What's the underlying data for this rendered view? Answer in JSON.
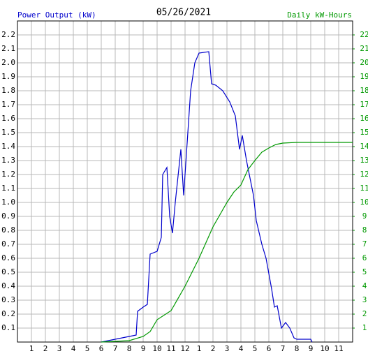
{
  "chart_data": {
    "type": "line",
    "title": "05/26/2021",
    "y_label": "Power Output (kW)",
    "y2_label": "Daily kW-Hours",
    "xlim": [
      0,
      24
    ],
    "xticks": [
      1,
      2,
      3,
      4,
      5,
      6,
      7,
      8,
      9,
      10,
      11,
      12,
      {
        "value": 13,
        "label": "1"
      },
      {
        "value": 14,
        "label": "2"
      },
      {
        "value": 15,
        "label": "3"
      },
      {
        "value": 16,
        "label": "4"
      },
      {
        "value": 17,
        "label": "5"
      },
      {
        "value": 18,
        "label": "6"
      },
      {
        "value": 19,
        "label": "7"
      },
      {
        "value": 20,
        "label": "8"
      },
      {
        "value": 21,
        "label": "9"
      },
      {
        "value": 22,
        "label": "10"
      },
      {
        "value": 23,
        "label": "11"
      }
    ],
    "ylim": [
      0,
      2.3
    ],
    "yticks": [
      0.1,
      0.2,
      0.3,
      0.4,
      0.5,
      0.6,
      0.7,
      0.8,
      0.9,
      {
        "value": 1,
        "label": "1.0"
      },
      1.1,
      1.2,
      1.3,
      1.4,
      1.5,
      1.6,
      1.7,
      1.8,
      1.9,
      {
        "value": 2,
        "label": "2.0"
      },
      2.1,
      2.2
    ],
    "y2lim": [
      0,
      23
    ],
    "y2ticks": [
      1,
      2,
      3,
      4,
      5,
      6,
      7,
      8,
      9,
      10,
      11,
      12,
      13,
      14,
      15,
      16,
      17,
      18,
      19,
      20,
      21,
      22
    ],
    "grid": true,
    "series": [
      {
        "name": "Power Output",
        "color": "#0000cc",
        "x": [
          6.0,
          7.0,
          8.0,
          8.5,
          8.6,
          9.0,
          9.3,
          9.5,
          10.0,
          10.3,
          10.4,
          10.7,
          10.9,
          11.1,
          11.3,
          11.7,
          11.9,
          12.2,
          12.4,
          12.7,
          13.0,
          13.7,
          13.9,
          14.2,
          14.7,
          15.2,
          15.6,
          15.9,
          16.1,
          16.4,
          16.6,
          16.9,
          17.1,
          17.5,
          17.8,
          18.2,
          18.4,
          18.6,
          18.9,
          19.2,
          19.5,
          19.8,
          20.0,
          21.0,
          21.1
        ],
        "values": [
          0,
          0.02,
          0.04,
          0.05,
          0.22,
          0.25,
          0.27,
          0.63,
          0.65,
          0.75,
          1.2,
          1.25,
          0.9,
          0.78,
          1.0,
          1.38,
          1.05,
          1.5,
          1.8,
          2.0,
          2.07,
          2.08,
          1.85,
          1.84,
          1.8,
          1.72,
          1.62,
          1.38,
          1.48,
          1.3,
          1.2,
          1.05,
          0.87,
          0.7,
          0.6,
          0.38,
          0.25,
          0.26,
          0.1,
          0.14,
          0.1,
          0.03,
          0.02,
          0.02,
          0
        ]
      },
      {
        "name": "Daily kW-Hours",
        "color": "#009900",
        "axis": "y2",
        "x": [
          6.0,
          8.0,
          9.0,
          9.5,
          10.0,
          11.0,
          12.0,
          13.0,
          14.0,
          15.0,
          15.5,
          16.0,
          16.5,
          17.0,
          17.5,
          18.0,
          18.5,
          19.0,
          20.0,
          24.0
        ],
        "values": [
          0,
          0.1,
          0.4,
          0.75,
          1.6,
          2.25,
          4,
          6,
          8.25,
          10,
          10.75,
          11.25,
          12.35,
          13,
          13.6,
          13.9,
          14.15,
          14.25,
          14.3,
          14.3
        ]
      }
    ]
  }
}
